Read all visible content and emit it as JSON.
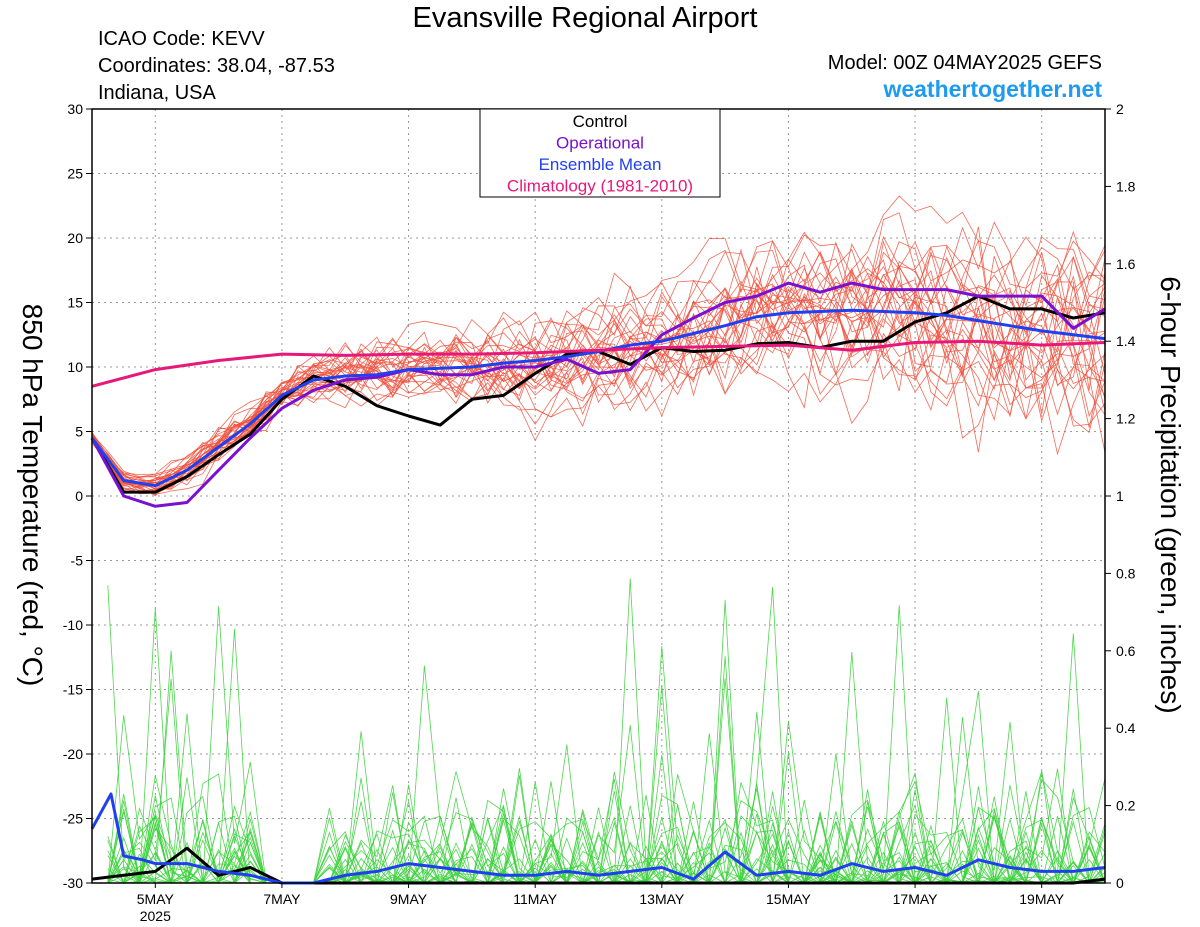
{
  "header": {
    "title": "Evansville Regional Airport",
    "icao": "ICAO Code: KEVV",
    "coordinates": "Coordinates: 38.04, -87.53",
    "region": "Indiana, USA",
    "model": "Model: 00Z 04MAY2025 GEFS",
    "website": "weathertogether.net"
  },
  "colors": {
    "ensemble_temp": "#f0503c",
    "ensemble_precip": "#3cd23c",
    "control": "#000000",
    "operational": "#7a10d0",
    "ensemble_mean": "#2040f0",
    "climatology": "#e6187a",
    "website": "#1e9bf0"
  },
  "chart_data": {
    "type": "line",
    "title": "Evansville Regional Airport",
    "ylabel": "850 hPa Temperature (red, °C)",
    "ylabel_right": "6-hour Precipitation (green, inches)",
    "xlim": [
      4.0,
      20.0
    ],
    "ylim": [
      -30,
      30
    ],
    "ylim_right": [
      0,
      2
    ],
    "grid": true,
    "legend_position": "top-center",
    "x_ticks": [
      {
        "x": 5,
        "label": "5MAY",
        "sublabel": "2025"
      },
      {
        "x": 7,
        "label": "7MAY",
        "sublabel": ""
      },
      {
        "x": 9,
        "label": "9MAY",
        "sublabel": ""
      },
      {
        "x": 11,
        "label": "11MAY",
        "sublabel": ""
      },
      {
        "x": 13,
        "label": "13MAY",
        "sublabel": ""
      },
      {
        "x": 15,
        "label": "15MAY",
        "sublabel": ""
      },
      {
        "x": 17,
        "label": "17MAY",
        "sublabel": ""
      },
      {
        "x": 19,
        "label": "19MAY",
        "sublabel": ""
      }
    ],
    "y_ticks": [
      "30",
      "25",
      "20",
      "15",
      "10",
      "5",
      "0",
      "-5",
      "-10",
      "-15",
      "-20",
      "-25",
      "-30"
    ],
    "y_ticks_right": [
      "2",
      "1.8",
      "1.6",
      "1.4",
      "1.2",
      "1",
      "0.8",
      "0.6",
      "0.4",
      "0.2",
      "0"
    ],
    "legend": [
      {
        "label": "Control",
        "color": "#000000"
      },
      {
        "label": "Operational",
        "color": "#7a10d0"
      },
      {
        "label": "Ensemble Mean",
        "color": "#2040f0"
      },
      {
        "label": "Climatology (1981-2010)",
        "color": "#e6187a"
      }
    ],
    "series": [
      {
        "name": "Control",
        "axis": "left",
        "x": [
          4.0,
          4.5,
          5.0,
          5.5,
          6.0,
          6.5,
          7.0,
          7.5,
          8.0,
          8.5,
          9.0,
          9.5,
          10.0,
          10.5,
          11.0,
          11.5,
          12.0,
          12.5,
          13.0,
          13.5,
          14.0,
          14.5,
          15.0,
          15.5,
          16.0,
          16.5,
          17.0,
          17.5,
          18.0,
          18.5,
          19.0,
          19.5,
          20.0
        ],
        "y": [
          4.5,
          0.3,
          0.3,
          1.5,
          3.2,
          4.8,
          7.5,
          9.3,
          8.5,
          7.0,
          6.2,
          5.5,
          7.5,
          7.8,
          9.5,
          11.0,
          11.2,
          10.2,
          11.5,
          11.2,
          11.3,
          11.8,
          11.9,
          11.5,
          12.0,
          12.0,
          13.5,
          14.2,
          15.5,
          14.5,
          14.5,
          13.8,
          14.2
        ]
      },
      {
        "name": "Operational",
        "axis": "left",
        "x": [
          4.0,
          4.5,
          5.0,
          5.5,
          6.0,
          6.5,
          7.0,
          7.5,
          8.0,
          8.5,
          9.0,
          9.5,
          10.0,
          10.5,
          11.0,
          11.5,
          12.0,
          12.5,
          13.0,
          13.5,
          14.0,
          14.5,
          15.0,
          15.5,
          16.0,
          16.5,
          17.0,
          17.5,
          18.0,
          18.5,
          19.0,
          19.5,
          20.0
        ],
        "y": [
          4.5,
          0.0,
          -0.8,
          -0.5,
          2.0,
          4.5,
          6.8,
          8.2,
          9.0,
          9.2,
          9.8,
          9.4,
          9.4,
          10.0,
          10.0,
          10.6,
          9.5,
          9.8,
          12.5,
          13.8,
          15.0,
          15.5,
          16.5,
          15.8,
          16.5,
          16.0,
          16.0,
          16.0,
          15.5,
          15.5,
          15.5,
          13.0,
          14.5
        ]
      },
      {
        "name": "Ensemble Mean",
        "axis": "left",
        "x": [
          4.0,
          4.5,
          5.0,
          5.5,
          6.0,
          6.5,
          7.0,
          7.5,
          8.0,
          8.5,
          9.0,
          9.5,
          10.0,
          10.5,
          11.0,
          11.5,
          12.0,
          12.5,
          13.0,
          13.5,
          14.0,
          14.5,
          15.0,
          15.5,
          16.0,
          16.5,
          17.0,
          17.5,
          18.0,
          18.5,
          19.0,
          19.5,
          20.0
        ],
        "y": [
          4.5,
          1.2,
          0.8,
          2.0,
          3.8,
          5.6,
          7.8,
          9.0,
          9.3,
          9.4,
          9.8,
          9.9,
          10.0,
          10.3,
          10.5,
          10.8,
          11.2,
          11.7,
          12.0,
          12.6,
          13.2,
          13.9,
          14.2,
          14.3,
          14.4,
          14.3,
          14.2,
          14.0,
          13.6,
          13.2,
          12.8,
          12.5,
          12.2
        ]
      },
      {
        "name": "Climatology (1981-2010)",
        "axis": "left",
        "x": [
          4.0,
          5.0,
          6.0,
          7.0,
          8.0,
          9.0,
          10.0,
          11.0,
          12.0,
          13.0,
          14.0,
          15.0,
          16.0,
          17.0,
          18.0,
          19.0,
          20.0
        ],
        "y": [
          8.5,
          9.8,
          10.5,
          11.0,
          10.9,
          11.0,
          11.0,
          11.1,
          11.3,
          11.5,
          11.6,
          11.7,
          11.3,
          11.9,
          12.0,
          11.7,
          11.9
        ]
      },
      {
        "name": "Control",
        "axis": "right",
        "x": [
          4.0,
          4.5,
          5.0,
          5.5,
          6.0,
          6.5,
          7.0,
          7.5,
          8.0,
          8.5,
          9.0,
          9.5,
          10.0,
          10.5,
          11.0,
          11.5,
          12.0,
          12.5,
          13.0,
          13.5,
          14.0,
          14.5,
          15.0,
          15.5,
          16.0,
          16.5,
          17.0,
          17.5,
          18.0,
          18.5,
          19.0,
          19.5,
          20.0
        ],
        "y": [
          0.01,
          0.02,
          0.03,
          0.09,
          0.02,
          0.04,
          0.0,
          0.0,
          0.0,
          0.0,
          0.0,
          0.0,
          0.0,
          0.0,
          0.0,
          0.0,
          0.0,
          0.0,
          0.0,
          0.0,
          0.0,
          0.0,
          0.0,
          0.0,
          0.0,
          0.0,
          0.0,
          0.0,
          0.0,
          0.0,
          0.0,
          0.0,
          0.01
        ]
      },
      {
        "name": "Ensemble Mean",
        "axis": "right",
        "x": [
          4.0,
          4.3,
          4.5,
          4.8,
          5.0,
          5.5,
          6.0,
          6.5,
          7.0,
          7.5,
          8.0,
          8.5,
          9.0,
          9.5,
          10.0,
          10.5,
          11.0,
          11.5,
          12.0,
          12.5,
          13.0,
          13.5,
          14.0,
          14.5,
          15.0,
          15.5,
          16.0,
          16.5,
          17.0,
          17.5,
          18.0,
          18.5,
          19.0,
          19.5,
          20.0
        ],
        "y": [
          0.14,
          0.23,
          0.07,
          0.06,
          0.05,
          0.05,
          0.03,
          0.02,
          0.0,
          0.0,
          0.02,
          0.03,
          0.05,
          0.04,
          0.03,
          0.02,
          0.02,
          0.03,
          0.02,
          0.03,
          0.04,
          0.01,
          0.08,
          0.02,
          0.03,
          0.02,
          0.05,
          0.03,
          0.04,
          0.02,
          0.06,
          0.04,
          0.03,
          0.03,
          0.04
        ]
      }
    ]
  }
}
